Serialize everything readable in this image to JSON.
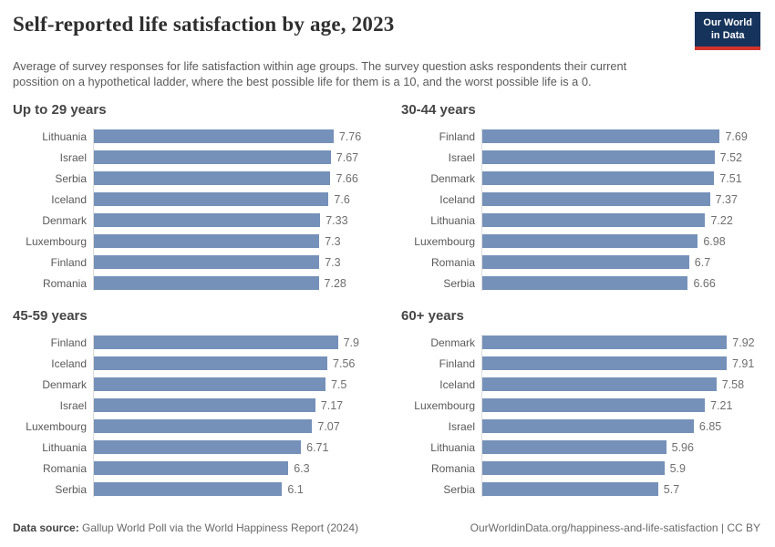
{
  "header": {
    "title": "Self-reported life satisfaction by age, 2023",
    "subtitle": "Average of survey responses for life satisfaction within age groups. The survey question asks respondents their current possition on a hypothetical ladder, where the best possible life for them is a 10, and the worst possible life is a 0.",
    "logo": {
      "line1": "Our World",
      "line2": "in Data"
    }
  },
  "colors": {
    "bar": "#7591B9",
    "axis": "#DCDCDC",
    "logo_navy": "#16335B",
    "logo_red": "#D0342C"
  },
  "chart_data": [
    {
      "type": "bar",
      "title": "Up to 29 years",
      "categories": [
        "Lithuania",
        "Israel",
        "Serbia",
        "Iceland",
        "Denmark",
        "Luxembourg",
        "Finland",
        "Romania"
      ],
      "values": [
        7.76,
        7.67,
        7.66,
        7.6,
        7.33,
        7.3,
        7.3,
        7.28
      ],
      "xlabel": "",
      "ylabel": "",
      "xlim": [
        0,
        9
      ],
      "orientation": "horizontal",
      "grid": false,
      "value_labels_shown": true
    },
    {
      "type": "bar",
      "title": "30-44 years",
      "categories": [
        "Finland",
        "Israel",
        "Denmark",
        "Iceland",
        "Lithuania",
        "Luxembourg",
        "Romania",
        "Serbia"
      ],
      "values": [
        7.69,
        7.52,
        7.51,
        7.37,
        7.22,
        6.98,
        6.7,
        6.66
      ],
      "xlabel": "",
      "ylabel": "",
      "xlim": [
        0,
        9
      ],
      "orientation": "horizontal",
      "grid": false,
      "value_labels_shown": true
    },
    {
      "type": "bar",
      "title": "45-59 years",
      "categories": [
        "Finland",
        "Iceland",
        "Denmark",
        "Israel",
        "Luxembourg",
        "Lithuania",
        "Romania",
        "Serbia"
      ],
      "values": [
        7.9,
        7.56,
        7.5,
        7.17,
        7.07,
        6.71,
        6.3,
        6.1
      ],
      "xlabel": "",
      "ylabel": "",
      "xlim": [
        0,
        9
      ],
      "orientation": "horizontal",
      "grid": false,
      "value_labels_shown": true
    },
    {
      "type": "bar",
      "title": "60+ years",
      "categories": [
        "Denmark",
        "Finland",
        "Iceland",
        "Luxembourg",
        "Israel",
        "Lithuania",
        "Romania",
        "Serbia"
      ],
      "values": [
        7.92,
        7.91,
        7.58,
        7.21,
        6.85,
        5.96,
        5.9,
        5.7
      ],
      "xlabel": "",
      "ylabel": "",
      "xlim": [
        0,
        9
      ],
      "orientation": "horizontal",
      "grid": false,
      "value_labels_shown": true
    }
  ],
  "footer": {
    "source_label": "Data source:",
    "source_text": " Gallup World Poll via the World Happiness Report (2024)",
    "link_text": "OurWorldinData.org/happiness-and-life-satisfaction | CC BY"
  }
}
